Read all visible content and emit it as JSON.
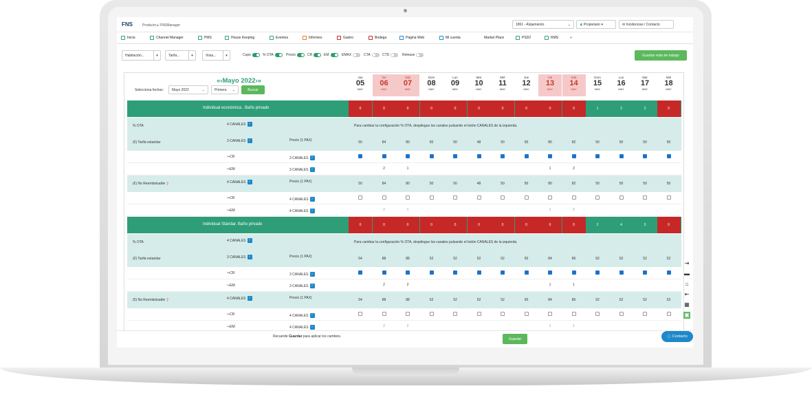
{
  "header": {
    "logo": "FNS",
    "breadcrumb": [
      "Producto",
      "FNSManager"
    ],
    "property_select": "1861 - Alojamiento",
    "user": "Propietario",
    "support": "Incidencias / Contacto"
  },
  "nav": [
    {
      "label": "Inicio",
      "icon": "home-icon"
    },
    {
      "label": "Channel Manager",
      "icon": "channel-icon"
    },
    {
      "label": "PMS",
      "icon": "chart-icon"
    },
    {
      "label": "House Keeping",
      "icon": "broom-icon"
    },
    {
      "label": "Eventos",
      "icon": "calendar-icon"
    },
    {
      "label": "Informes",
      "icon": "report-icon"
    },
    {
      "label": "Gastro",
      "icon": "grid-icon"
    },
    {
      "label": "Bodega",
      "icon": "bottle-icon"
    },
    {
      "label": "Página Web",
      "icon": "link-icon"
    },
    {
      "label": "Mi cuenta",
      "icon": "account-icon"
    },
    {
      "label": "Market Place",
      "icon": ""
    },
    {
      "label": "PSD2",
      "icon": "card-icon"
    },
    {
      "label": "RMS",
      "icon": "rms-icon"
    },
    {
      "label": "»",
      "icon": ""
    }
  ],
  "filters": {
    "habitacion": "Habitación...",
    "tarifa": "Tarifa...",
    "vista": "Vista...",
    "toggles": [
      {
        "label": "Cupo",
        "on": true
      },
      {
        "label": "% OTA",
        "on": true
      },
      {
        "label": "Precio",
        "on": true
      },
      {
        "label": "CR",
        "on": true
      },
      {
        "label": "EM",
        "on": true
      },
      {
        "label": "EMAX",
        "on": false
      },
      {
        "label": "CTA",
        "on": false
      },
      {
        "label": "CTD",
        "on": false
      },
      {
        "label": "Release",
        "on": false
      }
    ],
    "save_view": "Guardar vista de trabajo"
  },
  "calendar": {
    "month_title": "Mayo 2022",
    "select_label": "Selecciona fechas:",
    "month_select": "Mayo 2022",
    "period_select": "Primera",
    "search_button": "Buscar",
    "days": [
      {
        "name": "Jue",
        "num": "05",
        "mon": "MAY",
        "weekend": false
      },
      {
        "name": "Vie",
        "num": "06",
        "mon": "MAY",
        "weekend": true
      },
      {
        "name": "Sab",
        "num": "07",
        "mon": "MAY",
        "weekend": true
      },
      {
        "name": "Dom",
        "num": "08",
        "mon": "MAY",
        "weekend": false
      },
      {
        "name": "Lun",
        "num": "09",
        "mon": "MAY",
        "weekend": false
      },
      {
        "name": "Mar",
        "num": "10",
        "mon": "MAY",
        "weekend": false
      },
      {
        "name": "Mié",
        "num": "11",
        "mon": "MAY",
        "weekend": false
      },
      {
        "name": "Jue",
        "num": "12",
        "mon": "MAY",
        "weekend": false
      },
      {
        "name": "Vie",
        "num": "13",
        "mon": "MAY",
        "weekend": true
      },
      {
        "name": "Sab",
        "num": "14",
        "mon": "MAY",
        "weekend": true
      },
      {
        "name": "Dom",
        "num": "15",
        "mon": "MAY",
        "weekend": false
      },
      {
        "name": "Lun",
        "num": "16",
        "mon": "MAY",
        "weekend": false
      },
      {
        "name": "Mar",
        "num": "17",
        "mon": "MAY",
        "weekend": false
      },
      {
        "name": "Mié",
        "num": "18",
        "mon": "MAY",
        "weekend": false
      }
    ]
  },
  "rooms": [
    {
      "name": "Individual económica . Baño privado",
      "availability": [
        0,
        0,
        0,
        0,
        0,
        0,
        0,
        0,
        0,
        0,
        1,
        2,
        2,
        0
      ],
      "ota_label": "% OTA",
      "ota_channels": "4 CANALES",
      "ota_msg": "Para cambiar la configuración % OTA, despliegue los canales pulsando el botón CANALES de la izquierda.",
      "rates": [
        {
          "name": "(€) Tarifa estandar",
          "channels": "3 CANALES",
          "price_label": "Precio (1 PAX)",
          "prices": [
            50,
            84,
            80,
            50,
            50,
            48,
            50,
            50,
            80,
            82,
            50,
            50,
            50,
            50
          ],
          "cr_label": "↪CR",
          "cr_channels": "3 CANALES",
          "cr_checked": true,
          "em_label": "↪EM",
          "em_channels": "3 CANALES",
          "em_values": [
            "",
            "2",
            "1",
            "",
            "",
            "",
            "",
            "",
            "1",
            "2",
            "",
            "",
            "",
            ""
          ]
        },
        {
          "name": "(€) No Reembolsable",
          "channels": "4 CANALES",
          "price_label": "Precio (1 PAX)",
          "prices": [
            50,
            84,
            80,
            50,
            50,
            48,
            50,
            50,
            80,
            82,
            50,
            50,
            50,
            50
          ],
          "cr_label": "↪CR",
          "cr_channels": "4 CANALES",
          "cr_checked": false,
          "em_label": "↪EM",
          "em_channels": "4 CANALES",
          "em_values": [
            "",
            "2",
            "1",
            "",
            "",
            "",
            "",
            "",
            "1",
            "2",
            "",
            "",
            "",
            ""
          ]
        }
      ]
    },
    {
      "name": "Individual Stándar. Baño privado",
      "availability": [
        0,
        0,
        0,
        0,
        0,
        0,
        0,
        0,
        0,
        0,
        2,
        4,
        3,
        0
      ],
      "ota_label": "% OTA",
      "ota_channels": "4 CANALES",
      "ota_msg": "Para cambiar la configuración % OTA, despliegue los canales pulsando el botón CANALES de la izquierda.",
      "rates": [
        {
          "name": "(€) Tarifa estandar",
          "channels": "3 CANALES",
          "price_label": "Precio (1 PAX)",
          "prices": [
            54,
            88,
            88,
            52,
            52,
            52,
            52,
            50,
            84,
            86,
            52,
            52,
            52,
            52
          ],
          "cr_label": "↪CR",
          "cr_channels": "3 CANALES",
          "cr_checked": true,
          "em_label": "↪EM",
          "em_channels": "3 CANALES",
          "em_values": [
            "",
            "2",
            "2",
            "",
            "",
            "",
            "",
            "",
            "1",
            "1",
            "",
            "",
            "",
            ""
          ]
        },
        {
          "name": "(€) No Reembolsable",
          "channels": "4 CANALES",
          "price_label": "Precio (1 PAX)",
          "prices": [
            54,
            88,
            88,
            52,
            52,
            52,
            52,
            50,
            84,
            86,
            52,
            52,
            52,
            52
          ],
          "cr_label": "↪CR",
          "cr_channels": "4 CANALES",
          "cr_checked": false,
          "em_label": "↪EM",
          "em_channels": "4 CANALES",
          "em_values": [
            "",
            "2",
            "2",
            "",
            "",
            "",
            "",
            "",
            "1",
            "1",
            "",
            "",
            "",
            ""
          ]
        }
      ]
    }
  ],
  "footer": {
    "note_pre": "Recuerde ",
    "note_bold": "Guardar",
    "note_post": " para aplicar los cambios.",
    "save_button": "Guardar",
    "contact": "Contacto"
  },
  "colors": {
    "teal": "#2e9e78",
    "red": "#c62828",
    "weekend": "#f6c9c9",
    "blue": "#1e88c9",
    "green_btn": "#5cb85c"
  }
}
